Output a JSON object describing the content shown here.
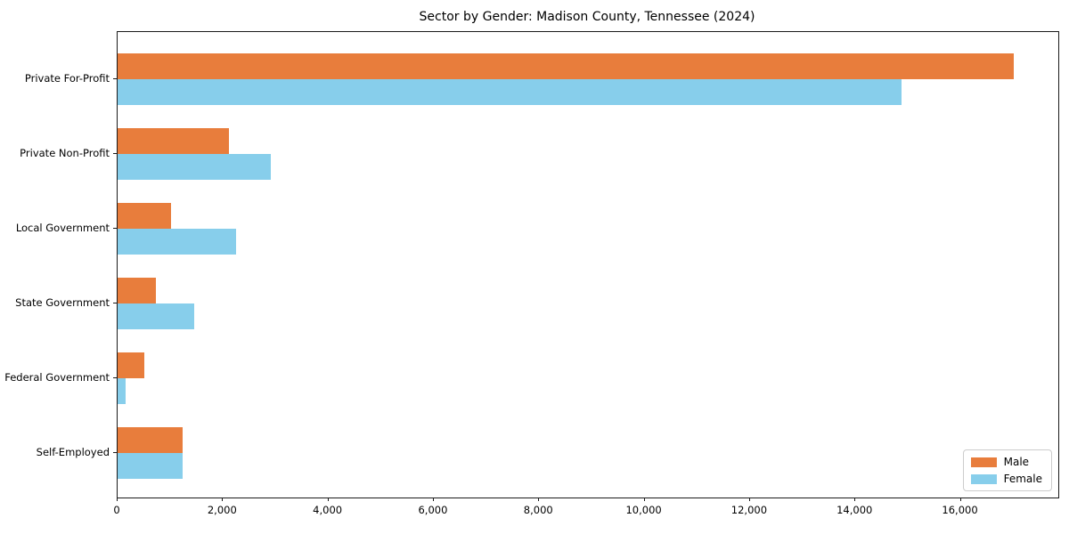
{
  "title": "Sector by Gender: Madison County, Tennessee (2024)",
  "colors": {
    "male": "#e87d3c",
    "female": "#87ceeb",
    "axis": "#1a1a1a",
    "legend_border": "#cccccc",
    "background": "#ffffff"
  },
  "chart_data": {
    "type": "bar",
    "orientation": "horizontal",
    "title": "Sector by Gender: Madison County, Tennessee (2024)",
    "categories": [
      "Private For-Profit",
      "Private Non-Profit",
      "Local Government",
      "State Government",
      "Federal Government",
      "Self-Employed"
    ],
    "series": [
      {
        "name": "Male",
        "color": "#e87d3c",
        "values": [
          17000,
          2110,
          1010,
          730,
          510,
          1240
        ]
      },
      {
        "name": "Female",
        "color": "#87ceeb",
        "values": [
          14880,
          2910,
          2250,
          1450,
          150,
          1240
        ]
      }
    ],
    "xlabel": "",
    "ylabel": "",
    "xlim": [
      0,
      17850
    ],
    "xticks": [
      0,
      2000,
      4000,
      6000,
      8000,
      10000,
      12000,
      14000,
      16000
    ],
    "grid": false,
    "legend_position": "lower right"
  },
  "legend": {
    "items": [
      {
        "label": "Male"
      },
      {
        "label": "Female"
      }
    ]
  }
}
